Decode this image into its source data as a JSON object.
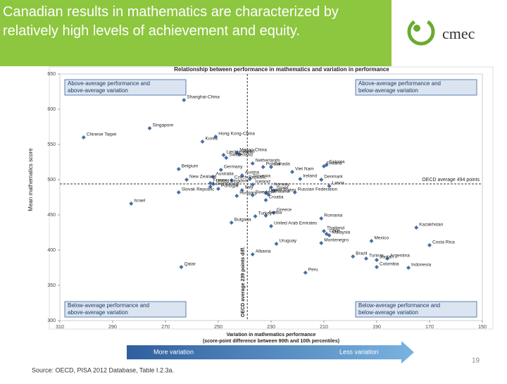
{
  "slide": {
    "title": "Canadian results in mathematics are characterized by relatively high levels of achievement and equity.",
    "logo": "cmec",
    "page_number": "19",
    "source": "Source: OECD, PISA 2012 Database, Table I.2.3a."
  },
  "chart_data": {
    "type": "scatter",
    "title": "Relationship between performance in mathematics and variation in performance",
    "ylabel": "Mean mathematics score",
    "xlabel": "Variation in mathematics performance",
    "xlabel_note": "(score-point difference between 90th and 10th percentiles)",
    "color": "#4a6fa5",
    "xlim": [
      310,
      150
    ],
    "xticks": [
      310,
      290,
      270,
      250,
      230,
      210,
      190,
      170,
      150
    ],
    "ylim": [
      300,
      650
    ],
    "yticks": [
      300,
      350,
      400,
      450,
      500,
      550,
      600,
      650
    ],
    "reference_lines": {
      "y": {
        "value": 494,
        "label": "OECD average 494 points"
      },
      "x": {
        "value": 239,
        "label": "OECD average 239 points diff."
      }
    },
    "quadrants": [
      [
        "Above-average performance and",
        "above-average variation"
      ],
      [
        "Above-average performance and",
        "below-average variation"
      ],
      [
        "Below-average performance and",
        "above-average variation"
      ],
      [
        "Below-average performance and",
        "below-average variation"
      ]
    ],
    "arrows": [
      "More variation",
      "Less variation"
    ],
    "point_labels": [
      "Shanghai-China",
      "Singapore",
      "Chinese Taipei",
      "Hong Kong-China",
      "Korea",
      "Macao-China",
      "Japan",
      "Liechtenstein",
      "Switzerland",
      "Netherlands",
      "Estonia",
      "Finland",
      "Canada",
      "Poland",
      "Belgium",
      "Germany",
      "Viet Nam",
      "Austria",
      "Australia",
      "Ireland",
      "Slovenia",
      "Denmark",
      "New Zealand",
      "Czech Republic",
      "France",
      "United Kingdom",
      "Iceland",
      "Latvia",
      "Luxembourg",
      "Norway",
      "Portugal",
      "Italy",
      "Spain",
      "Russian Federation",
      "Slovak Republic",
      "United States",
      "Lithuania",
      "Sweden",
      "Hungary",
      "Croatia",
      "Israel",
      "Greece",
      "Serbia",
      "Turkey",
      "Romania",
      "Bulgaria",
      "United Arab Emirates",
      "Kazakhstan",
      "Thailand",
      "Chile",
      "Malaysia",
      "Mexico",
      "Montenegro",
      "Uruguay",
      "Costa Rica",
      "Albania",
      "Brazil",
      "Argentina",
      "Tunisia",
      "Jordan",
      "Colombia",
      "Qatar",
      "Indonesia",
      "Peru"
    ],
    "x": [
      263,
      276,
      301,
      251,
      256,
      243,
      242,
      248,
      247,
      237,
      209,
      210,
      230,
      233,
      265,
      249,
      222,
      241,
      252,
      219,
      238,
      211,
      262,
      245,
      253,
      252,
      237,
      208,
      253,
      230,
      250,
      241,
      229,
      221,
      265,
      232,
      231,
      237,
      243,
      232,
      283,
      229,
      232,
      236,
      211,
      245,
      230,
      175,
      210,
      209,
      208,
      192,
      211,
      228,
      170,
      237,
      199,
      186,
      194,
      190,
      190,
      264,
      178,
      217
    ],
    "values": [
      613,
      573,
      560,
      561,
      554,
      538,
      536,
      535,
      531,
      523,
      521,
      519,
      518,
      518,
      515,
      514,
      511,
      506,
      504,
      501,
      501,
      500,
      500,
      499,
      495,
      494,
      493,
      491,
      490,
      489,
      487,
      485,
      484,
      482,
      482,
      481,
      479,
      478,
      477,
      471,
      466,
      453,
      449,
      448,
      445,
      439,
      434,
      432,
      427,
      423,
      421,
      413,
      410,
      409,
      407,
      394,
      391,
      388,
      388,
      386,
      376,
      376,
      375,
      368
    ]
  }
}
